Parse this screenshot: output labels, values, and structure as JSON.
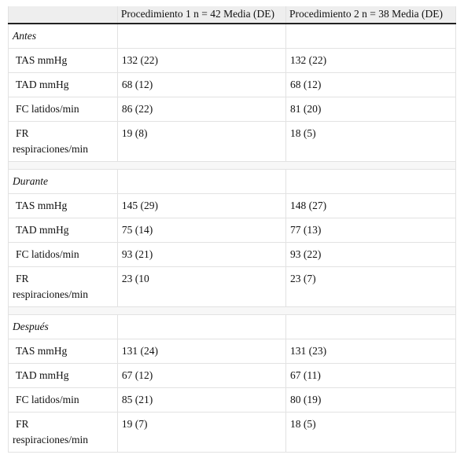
{
  "table": {
    "columns": [
      "Procedimiento 1 n = 42 Media (DE)",
      "Procedimiento 2 n = 38 Media (DE)"
    ],
    "sections": [
      {
        "label": "Antes",
        "rows": [
          [
            "TAS mmHg",
            "132 (22)",
            "132 (22)"
          ],
          [
            "TAD mmHg",
            "68 (12)",
            "68 (12)"
          ],
          [
            "FC latidos/min",
            "86 (22)",
            "81 (20)"
          ],
          [
            "FR respiraciones/min",
            "19 (8)",
            "18 (5)"
          ]
        ]
      },
      {
        "label": "Durante",
        "rows": [
          [
            "TAS mmHg",
            "145 (29)",
            "148 (27)"
          ],
          [
            "TAD mmHg",
            "75 (14)",
            "77 (13)"
          ],
          [
            "FC latidos/min",
            "93 (21)",
            "93 (22)"
          ],
          [
            "FR respiraciones/min",
            "23 (10",
            "23 (7)"
          ]
        ]
      },
      {
        "label": "Después",
        "rows": [
          [
            "TAS mmHg",
            "131 (24)",
            "131 (23)"
          ],
          [
            "TAD mmHg",
            "67 (12)",
            "67 (11)"
          ],
          [
            "FC latidos/min",
            "85 (21)",
            "80 (19)"
          ],
          [
            "FR respiraciones/min",
            "19 (7)",
            "18 (5)"
          ]
        ]
      }
    ]
  }
}
